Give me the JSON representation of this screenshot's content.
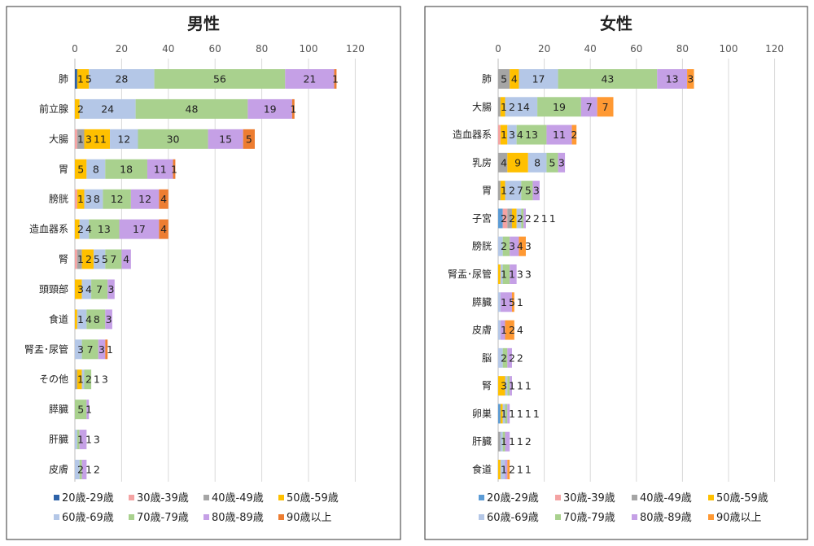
{
  "chart_data": [
    {
      "type": "bar",
      "orientation": "horizontal-stacked",
      "title": "男性",
      "xlim": [
        0,
        120
      ],
      "xticks": [
        0,
        20,
        40,
        60,
        80,
        100,
        120
      ],
      "grid": true,
      "legend_position": "bottom",
      "series_names": [
        "20歳-29歳",
        "30歳-39歳",
        "40歳-49歳",
        "50歳-59歳",
        "60歳-69歳",
        "70歳-79歳",
        "80歳-89歳",
        "90歳以上"
      ],
      "colors": [
        "#2e62a8",
        "#f4a3a3",
        "#a5a5a5",
        "#ffc000",
        "#b4c7e7",
        "#a9d18e",
        "#c5a0e6",
        "#ed7d31"
      ],
      "categories": [
        "肺",
        "前立腺",
        "大腸",
        "胃",
        "膀胱",
        "造血器系",
        "腎",
        "頭頸部",
        "食道",
        "腎盂･尿管",
        "その他",
        "膵臓",
        "肝臓",
        "皮膚"
      ],
      "values": [
        [
          1,
          0,
          0,
          5,
          28,
          56,
          21,
          1
        ],
        [
          0,
          0,
          0,
          2,
          24,
          48,
          19,
          1
        ],
        [
          0,
          1,
          3,
          11,
          12,
          30,
          15,
          5
        ],
        [
          0,
          0,
          0,
          5,
          8,
          18,
          11,
          1
        ],
        [
          0,
          1,
          0,
          3,
          8,
          12,
          12,
          4
        ],
        [
          0,
          0,
          0,
          2,
          4,
          13,
          17,
          4
        ],
        [
          0,
          1,
          2,
          5,
          5,
          7,
          4,
          0
        ],
        [
          0,
          0,
          0,
          3,
          4,
          7,
          3,
          0
        ],
        [
          0,
          0,
          0,
          1,
          4,
          8,
          3,
          0
        ],
        [
          0,
          0,
          0,
          0,
          3,
          7,
          3,
          1
        ],
        [
          0,
          0,
          1,
          2,
          1,
          3,
          0,
          0
        ],
        [
          0,
          0,
          0,
          0,
          0,
          5,
          1,
          0
        ],
        [
          0,
          0,
          0,
          0,
          1,
          1,
          3,
          0
        ],
        [
          0,
          0,
          0,
          0,
          2,
          1,
          2,
          0
        ]
      ]
    },
    {
      "type": "bar",
      "orientation": "horizontal-stacked",
      "title": "女性",
      "xlim": [
        0,
        120
      ],
      "xticks": [
        0,
        20,
        40,
        60,
        80,
        100,
        120
      ],
      "grid": true,
      "legend_position": "bottom",
      "series_names": [
        "20歳-29歳",
        "30歳-39歳",
        "40歳-49歳",
        "50歳-59歳",
        "60歳-69歳",
        "70歳-79歳",
        "80歳-89歳",
        "90歳以上"
      ],
      "colors": [
        "#5b9bd5",
        "#f4a3a3",
        "#a5a5a5",
        "#ffc000",
        "#b4c7e7",
        "#a9d18e",
        "#c5a0e6",
        "#ff9933"
      ],
      "categories": [
        "肺",
        "大腸",
        "造血器系",
        "乳房",
        "胃",
        "子宮",
        "膀胱",
        "腎盂･尿管",
        "膵臓",
        "皮膚",
        "脳",
        "腎",
        "卵巣",
        "肝臓",
        "食道"
      ],
      "values": [
        [
          0,
          0,
          5,
          4,
          17,
          43,
          13,
          3
        ],
        [
          0,
          0,
          1,
          2,
          14,
          19,
          7,
          7
        ],
        [
          0,
          1,
          0,
          3,
          4,
          13,
          11,
          2
        ],
        [
          0,
          0,
          4,
          9,
          8,
          5,
          3,
          0
        ],
        [
          0,
          0,
          1,
          2,
          7,
          5,
          3,
          0
        ],
        [
          2,
          2,
          2,
          2,
          2,
          1,
          1,
          0
        ],
        [
          0,
          0,
          0,
          0,
          2,
          3,
          4,
          3
        ],
        [
          0,
          0,
          0,
          1,
          1,
          3,
          3,
          0
        ],
        [
          0,
          0,
          0,
          0,
          1,
          0,
          5,
          1
        ],
        [
          0,
          0,
          0,
          0,
          1,
          0,
          2,
          4
        ],
        [
          0,
          0,
          0,
          0,
          2,
          2,
          2,
          0
        ],
        [
          0,
          0,
          0,
          3,
          1,
          1,
          1,
          0
        ],
        [
          1,
          0,
          0,
          1,
          1,
          1,
          1,
          0
        ],
        [
          0,
          0,
          1,
          0,
          1,
          1,
          2,
          0
        ],
        [
          0,
          0,
          0,
          1,
          2,
          0,
          1,
          1
        ]
      ]
    }
  ]
}
